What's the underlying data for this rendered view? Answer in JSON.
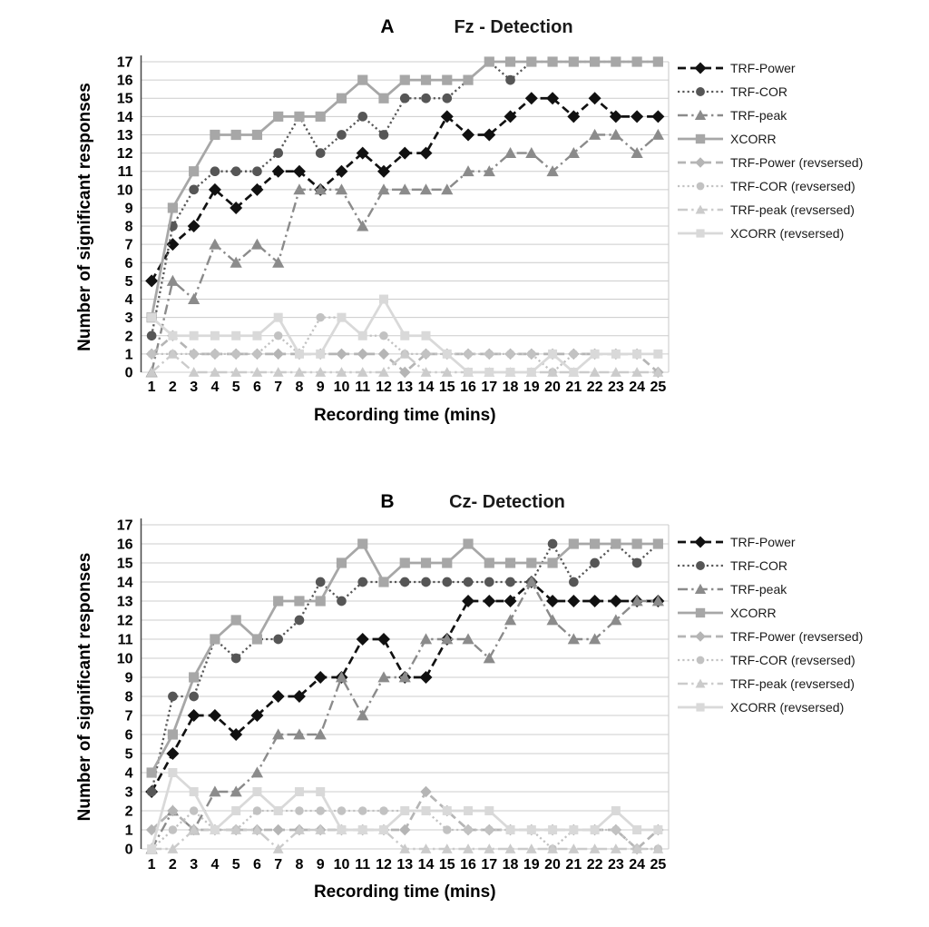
{
  "chart_data": [
    {
      "type": "line",
      "panel": "A",
      "title": "Fz - Detection",
      "xlabel": "Recording time (mins)",
      "ylabel": "Number of significant  responses",
      "x": [
        1,
        2,
        3,
        4,
        5,
        6,
        7,
        8,
        9,
        10,
        11,
        12,
        13,
        14,
        15,
        16,
        17,
        18,
        19,
        20,
        21,
        22,
        23,
        24,
        25
      ],
      "ylim": [
        0,
        17
      ],
      "grid": true,
      "legend_position": "right",
      "series": [
        {
          "name": "TRF-Power",
          "marker": "diamond",
          "line": "dashed",
          "color": "#111111",
          "values": [
            5,
            7,
            8,
            10,
            9,
            10,
            11,
            11,
            10,
            11,
            12,
            11,
            12,
            12,
            14,
            13,
            13,
            14,
            15,
            15,
            14,
            15,
            14,
            14,
            14
          ]
        },
        {
          "name": "TRF-COR",
          "marker": "circle",
          "line": "dotted",
          "color": "#565656",
          "values": [
            2,
            8,
            10,
            11,
            11,
            11,
            12,
            14,
            12,
            13,
            14,
            13,
            15,
            15,
            15,
            16,
            17,
            16,
            17,
            17,
            17,
            17,
            17,
            17,
            17
          ]
        },
        {
          "name": "TRF-peak",
          "marker": "triangle",
          "line": "dashdot",
          "color": "#8b8b8b",
          "values": [
            0,
            5,
            4,
            7,
            6,
            7,
            6,
            10,
            10,
            10,
            8,
            10,
            10,
            10,
            10,
            11,
            11,
            12,
            12,
            11,
            12,
            13,
            13,
            12,
            13
          ]
        },
        {
          "name": "XCORR",
          "marker": "square",
          "line": "solid",
          "color": "#a7a7a7",
          "values": [
            3,
            9,
            11,
            13,
            13,
            13,
            14,
            14,
            14,
            15,
            16,
            15,
            16,
            16,
            16,
            16,
            17,
            17,
            17,
            17,
            17,
            17,
            17,
            17,
            17
          ]
        },
        {
          "name": "TRF-Power (revsersed)",
          "marker": "diamond",
          "line": "dashed",
          "color": "#b5b5b5",
          "values": [
            1,
            2,
            1,
            1,
            1,
            1,
            1,
            1,
            1,
            1,
            1,
            1,
            0,
            1,
            1,
            1,
            1,
            1,
            1,
            1,
            1,
            1,
            1,
            1,
            0
          ]
        },
        {
          "name": "TRF-COR (revsersed)",
          "marker": "circle",
          "line": "dotted",
          "color": "#c2c2c2",
          "values": [
            1,
            1,
            1,
            1,
            1,
            1,
            2,
            1,
            3,
            3,
            2,
            2,
            1,
            1,
            1,
            1,
            1,
            1,
            1,
            0,
            1,
            1,
            1,
            1,
            1
          ]
        },
        {
          "name": "TRF-peak (revsersed)",
          "marker": "triangle",
          "line": "dashdot",
          "color": "#cbcbcb",
          "values": [
            0,
            1,
            0,
            0,
            0,
            0,
            0,
            0,
            0,
            0,
            0,
            0,
            1,
            0,
            0,
            0,
            0,
            0,
            0,
            0,
            0,
            0,
            0,
            0,
            0
          ]
        },
        {
          "name": "XCORR (revsersed)",
          "marker": "square",
          "line": "solid",
          "color": "#d9d9d9",
          "values": [
            3,
            2,
            2,
            2,
            2,
            2,
            3,
            1,
            1,
            3,
            2,
            4,
            2,
            2,
            1,
            0,
            0,
            0,
            0,
            1,
            0,
            1,
            1,
            1,
            1
          ]
        }
      ]
    },
    {
      "type": "line",
      "panel": "B",
      "title": "Cz- Detection",
      "xlabel": "Recording time (mins)",
      "ylabel": "Number of significant  responses",
      "x": [
        1,
        2,
        3,
        4,
        5,
        6,
        7,
        8,
        9,
        10,
        11,
        12,
        13,
        14,
        15,
        16,
        17,
        18,
        19,
        20,
        21,
        22,
        23,
        24,
        25
      ],
      "ylim": [
        0,
        17
      ],
      "grid": true,
      "legend_position": "right",
      "series": [
        {
          "name": "TRF-Power",
          "marker": "diamond",
          "line": "dashed",
          "color": "#111111",
          "values": [
            3,
            5,
            7,
            7,
            6,
            7,
            8,
            8,
            9,
            9,
            11,
            11,
            9,
            9,
            11,
            13,
            13,
            13,
            14,
            13,
            13,
            13,
            13,
            13,
            13
          ]
        },
        {
          "name": "TRF-COR",
          "marker": "circle",
          "line": "dotted",
          "color": "#565656",
          "values": [
            3,
            8,
            8,
            11,
            10,
            11,
            11,
            12,
            14,
            13,
            14,
            14,
            14,
            14,
            14,
            14,
            14,
            14,
            14,
            16,
            14,
            15,
            16,
            15,
            16
          ]
        },
        {
          "name": "TRF-peak",
          "marker": "triangle",
          "line": "dashdot",
          "color": "#8b8b8b",
          "values": [
            0,
            2,
            1,
            3,
            3,
            4,
            6,
            6,
            6,
            9,
            7,
            9,
            9,
            11,
            11,
            11,
            10,
            12,
            14,
            12,
            11,
            11,
            12,
            13,
            13
          ]
        },
        {
          "name": "XCORR",
          "marker": "square",
          "line": "solid",
          "color": "#a7a7a7",
          "values": [
            4,
            6,
            9,
            11,
            12,
            11,
            13,
            13,
            13,
            15,
            16,
            14,
            15,
            15,
            15,
            16,
            15,
            15,
            15,
            15,
            16,
            16,
            16,
            16,
            16
          ]
        },
        {
          "name": "TRF-Power (revsersed)",
          "marker": "diamond",
          "line": "dashed",
          "color": "#b5b5b5",
          "values": [
            1,
            2,
            1,
            1,
            1,
            1,
            1,
            1,
            1,
            1,
            1,
            1,
            1,
            3,
            2,
            1,
            1,
            1,
            1,
            1,
            1,
            1,
            1,
            0,
            1
          ]
        },
        {
          "name": "TRF-COR (revsersed)",
          "marker": "circle",
          "line": "dotted",
          "color": "#c2c2c2",
          "values": [
            0,
            1,
            2,
            1,
            1,
            2,
            2,
            2,
            2,
            2,
            2,
            2,
            2,
            2,
            1,
            1,
            1,
            1,
            1,
            0,
            1,
            1,
            1,
            0,
            0
          ]
        },
        {
          "name": "TRF-peak (revsersed)",
          "marker": "triangle",
          "line": "dashdot",
          "color": "#cbcbcb",
          "values": [
            0,
            0,
            1,
            1,
            1,
            1,
            0,
            1,
            1,
            1,
            1,
            1,
            0,
            0,
            0,
            0,
            0,
            0,
            0,
            0,
            0,
            0,
            0,
            0,
            0
          ]
        },
        {
          "name": "XCORR (revsersed)",
          "marker": "square",
          "line": "solid",
          "color": "#d9d9d9",
          "values": [
            0,
            4,
            3,
            1,
            2,
            3,
            2,
            3,
            3,
            1,
            1,
            1,
            2,
            2,
            2,
            2,
            2,
            1,
            1,
            1,
            1,
            1,
            2,
            1,
            1
          ]
        }
      ]
    }
  ]
}
